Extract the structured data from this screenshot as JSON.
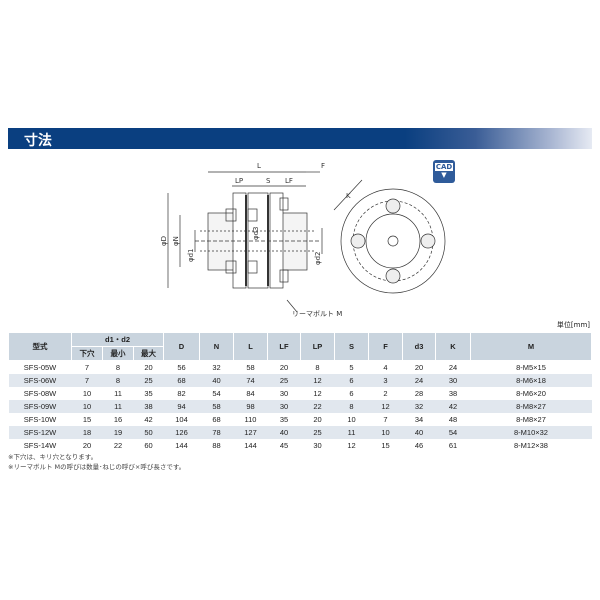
{
  "section_title": "寸法",
  "cad_label": "CAD",
  "cad_arrow": "▼",
  "drawing_labels": {
    "L": "L",
    "F": "F",
    "LP": "LP",
    "S": "S",
    "LF": "LF",
    "K": "K",
    "phiD": "φD",
    "phiN": "φN",
    "phid1": "φd1",
    "phid2": "φd2",
    "phid3": "φd3",
    "bolt": "リーマボルト M"
  },
  "unit": "単位[mm]",
  "table": {
    "headers": {
      "model": "型式",
      "d1d2": "d1・d2",
      "sub": [
        "下穴",
        "最小",
        "最大"
      ],
      "cols": [
        "D",
        "N",
        "L",
        "LF",
        "LP",
        "S",
        "F",
        "d3",
        "K",
        "M"
      ]
    },
    "rows": [
      [
        "SFS-05W",
        "7",
        "8",
        "20",
        "56",
        "32",
        "58",
        "20",
        "8",
        "5",
        "4",
        "20",
        "24",
        "8-M5×15"
      ],
      [
        "SFS-06W",
        "7",
        "8",
        "25",
        "68",
        "40",
        "74",
        "25",
        "12",
        "6",
        "3",
        "24",
        "30",
        "8-M6×18"
      ],
      [
        "SFS-08W",
        "10",
        "11",
        "35",
        "82",
        "54",
        "84",
        "30",
        "12",
        "6",
        "2",
        "28",
        "38",
        "8-M6×20"
      ],
      [
        "SFS-09W",
        "10",
        "11",
        "38",
        "94",
        "58",
        "98",
        "30",
        "22",
        "8",
        "12",
        "32",
        "42",
        "8-M8×27"
      ],
      [
        "SFS-10W",
        "15",
        "16",
        "42",
        "104",
        "68",
        "110",
        "35",
        "20",
        "10",
        "7",
        "34",
        "48",
        "8-M8×27"
      ],
      [
        "SFS-12W",
        "18",
        "19",
        "50",
        "126",
        "78",
        "127",
        "40",
        "25",
        "11",
        "10",
        "40",
        "54",
        "8-M10×32"
      ],
      [
        "SFS-14W",
        "20",
        "22",
        "60",
        "144",
        "88",
        "144",
        "45",
        "30",
        "12",
        "15",
        "46",
        "61",
        "8-M12×38"
      ]
    ]
  },
  "notes": [
    "※下穴は、キリ穴となります。",
    "※リーマボルト Mの呼びは数量･ねじの呼び×呼び長さです。"
  ]
}
